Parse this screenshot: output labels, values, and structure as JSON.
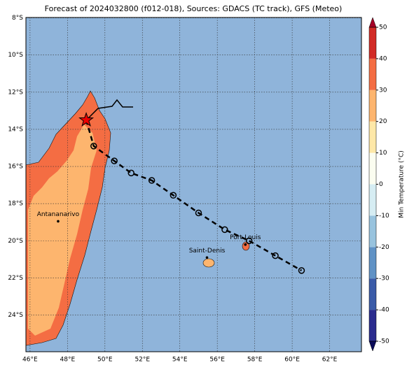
{
  "chart_data": {
    "type": "map",
    "title": "Forecast of 2024032800 (f012-018), Sources: GDACS (TC track), GFS (Meteo)",
    "xlim": [
      45.78,
      63.7
    ],
    "ylim": [
      -25.97,
      -7.98
    ],
    "xticks": [
      {
        "value": 46,
        "label": "46°E"
      },
      {
        "value": 48,
        "label": "48°E"
      },
      {
        "value": 50,
        "label": "50°E"
      },
      {
        "value": 52,
        "label": "52°E"
      },
      {
        "value": 54,
        "label": "54°E"
      },
      {
        "value": 56,
        "label": "56°E"
      },
      {
        "value": 58,
        "label": "58°E"
      },
      {
        "value": 60,
        "label": "60°E"
      },
      {
        "value": 62,
        "label": "62°E"
      }
    ],
    "yticks": [
      {
        "value": -8,
        "label": "8°S"
      },
      {
        "value": -10,
        "label": "10°S"
      },
      {
        "value": -12,
        "label": "12°S"
      },
      {
        "value": -14,
        "label": "14°S"
      },
      {
        "value": -16,
        "label": "16°S"
      },
      {
        "value": -18,
        "label": "18°S"
      },
      {
        "value": -20,
        "label": "20°S"
      },
      {
        "value": -22,
        "label": "22°S"
      },
      {
        "value": -24,
        "label": "24°S"
      }
    ],
    "grid": true,
    "track": {
      "lon": [
        49.0,
        49.4,
        50.5,
        51.4,
        52.5,
        53.65,
        55.0,
        56.4,
        57.7,
        59.1,
        60.5
      ],
      "lat": [
        -13.5,
        -14.9,
        -15.7,
        -16.35,
        -16.75,
        -17.55,
        -18.5,
        -19.4,
        -20.0,
        -20.8,
        -21.6
      ]
    },
    "cities": [
      {
        "name": "Antananarivo",
        "lon": 47.5,
        "lat": -18.95
      },
      {
        "name": "Saint-Denis",
        "lon": 55.45,
        "lat": -20.9
      },
      {
        "name": "Port-Louis",
        "lon": 57.5,
        "lat": -20.2
      }
    ],
    "colorbar": {
      "label": "Min Temperature (°C)",
      "lim": [
        -50,
        50
      ],
      "ticks": [
        -50,
        -40,
        -30,
        -20,
        -10,
        0,
        10,
        20,
        30,
        40,
        50
      ],
      "colors": [
        "#2a2b8e",
        "#3a5ba8",
        "#6092c5",
        "#98c3de",
        "#d6edf3",
        "#fbfdf0",
        "#fee8a8",
        "#fdb56e",
        "#f46d43",
        "#d22b26"
      ],
      "extend_colors": [
        "#a50026",
        "#0b0b5a"
      ]
    }
  }
}
